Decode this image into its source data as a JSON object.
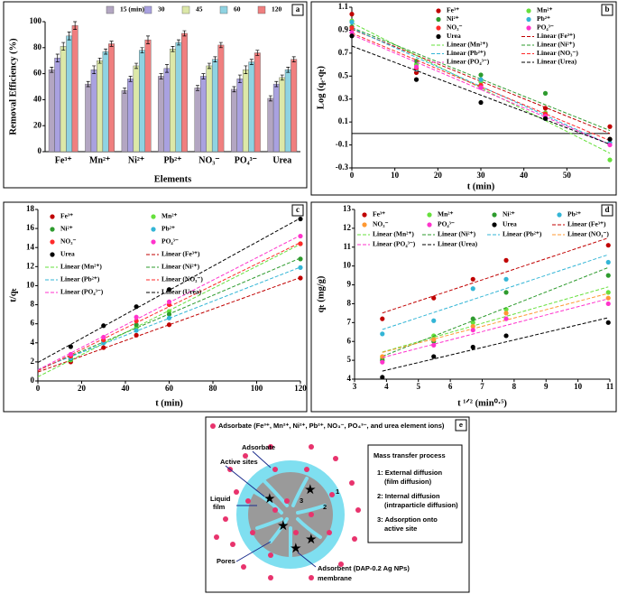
{
  "chart_data": [
    {
      "type": "bar",
      "panel": "a",
      "x_label": "Elements",
      "y_label": "Removal Efficiency  (%)",
      "categories": [
        "Fe³⁺",
        "Mn²⁺",
        "Ni²⁺",
        "Pb²⁺",
        "NO₃⁻",
        "PO₄³⁻",
        "Urea"
      ],
      "series": [
        {
          "name": "15 (min)",
          "color": "#b3a6c2",
          "values": [
            63,
            52,
            47,
            58,
            49,
            48,
            41
          ],
          "errors": [
            2,
            2,
            2,
            2,
            2,
            2,
            2
          ]
        },
        {
          "name": "30",
          "color": "#a9a1e0",
          "values": [
            72,
            63,
            56,
            64,
            58,
            56,
            52
          ],
          "errors": [
            3,
            3,
            2,
            3,
            2,
            3,
            2
          ]
        },
        {
          "name": "45",
          "color": "#dce8a8",
          "values": [
            81,
            70,
            66,
            79,
            66,
            63,
            57
          ],
          "errors": [
            3,
            2,
            2,
            2,
            2,
            3,
            2
          ]
        },
        {
          "name": "60",
          "color": "#8fd3e2",
          "values": [
            89,
            77,
            78,
            84,
            71,
            69,
            63
          ],
          "errors": [
            3,
            2,
            2,
            2,
            2,
            2,
            2
          ]
        },
        {
          "name": "120",
          "color": "#f07f7f",
          "values": [
            97,
            83,
            86,
            91,
            82,
            76,
            71
          ],
          "errors": [
            3,
            2,
            3,
            2,
            2,
            2,
            2
          ]
        }
      ],
      "ylim": [
        0,
        100
      ],
      "yticks": [
        0,
        20,
        40,
        60,
        80,
        100
      ],
      "grid": false,
      "legend": "upper center"
    },
    {
      "type": "scatter",
      "panel": "b",
      "x_label": "t (min)",
      "y_label": "Log (qₑ-qₜ)",
      "x": [
        0,
        15,
        30,
        45,
        60
      ],
      "series": [
        {
          "name": "Fe³⁺",
          "color": "#c00000",
          "values": [
            1.04,
            0.53,
            0.42,
            0.22,
            0.06
          ],
          "trendline": "Linear (Fe³⁺)"
        },
        {
          "name": "Mn²⁺",
          "color": "#66e03c",
          "values": [
            0.98,
            0.6,
            0.45,
            0.18,
            -0.23
          ],
          "trendline": "Linear (Mn²⁺)"
        },
        {
          "name": "Ni²⁺",
          "color": "#2e9b2e",
          "values": [
            0.93,
            0.63,
            0.51,
            0.35,
            -0.05
          ],
          "trendline": "Linear (Ni²⁺)"
        },
        {
          "name": "Pb²⁺",
          "color": "#33b5d6",
          "values": [
            0.97,
            0.56,
            0.47,
            0.13,
            -0.08
          ],
          "trendline": "Linear (Pb²⁺)"
        },
        {
          "name": "NO₃⁻",
          "color": "#ff2a2a",
          "values": [
            0.92,
            0.57,
            0.42,
            0.17,
            -0.05
          ],
          "trendline": "Linear (NO₃⁻)"
        },
        {
          "name": "PO₄³⁻",
          "color": "#ff33cc",
          "values": [
            0.88,
            0.58,
            0.4,
            0.15,
            -0.1
          ],
          "trendline": "Linear (PO₄³⁻)"
        },
        {
          "name": "Urea",
          "color": "#000000",
          "values": [
            0.85,
            0.47,
            0.27,
            0.13,
            -0.05
          ],
          "trendline": "Linear (Urea)"
        }
      ],
      "xlim": [
        0,
        60
      ],
      "xticks": [
        0,
        10,
        20,
        30,
        40,
        50
      ],
      "ylim": [
        -0.3,
        1.1
      ],
      "yticks": [
        -0.3,
        -0.1,
        0.1,
        0.3,
        0.5,
        0.7,
        0.9,
        1.1
      ],
      "grid": false,
      "legend": "upper right"
    },
    {
      "type": "scatter",
      "panel": "c",
      "x_label": "t (min)",
      "y_label": "t/qₜ",
      "x": [
        15,
        30,
        45,
        60,
        120
      ],
      "series": [
        {
          "name": "Fe³⁺",
          "color": "#c00000",
          "values": [
            2.0,
            3.5,
            4.8,
            5.9,
            10.8
          ],
          "trendline": "Linear (Fe³⁺)"
        },
        {
          "name": "Mn²⁺",
          "color": "#66e03c",
          "values": [
            2.2,
            4.0,
            5.6,
            7.3,
            14.4
          ],
          "trendline": "Linear (Mn²⁺)"
        },
        {
          "name": "Ni²⁺",
          "color": "#2e9b2e",
          "values": [
            2.3,
            4.2,
            5.9,
            7.0,
            12.8
          ],
          "trendline": "Linear (Ni²⁺)"
        },
        {
          "name": "Pb²⁺",
          "color": "#33b5d6",
          "values": [
            2.4,
            4.0,
            5.3,
            6.6,
            11.9
          ],
          "trendline": "Linear (Pb²⁺)"
        },
        {
          "name": "NO₃⁻",
          "color": "#ff2a2a",
          "values": [
            2.6,
            4.3,
            6.3,
            8.0,
            14.4
          ],
          "trendline": "Linear (NO₃⁻)"
        },
        {
          "name": "PO₄³⁻",
          "color": "#ff33cc",
          "values": [
            2.8,
            4.6,
            6.7,
            8.3,
            15.2
          ],
          "trendline": "Linear (PO₄³⁻)"
        },
        {
          "name": "Urea",
          "color": "#000000",
          "values": [
            3.6,
            5.8,
            7.8,
            9.6,
            17.0
          ],
          "trendline": "Linear (Urea)"
        }
      ],
      "xlim": [
        0,
        120
      ],
      "xticks": [
        0,
        20,
        40,
        60,
        80,
        100,
        120
      ],
      "ylim": [
        0,
        18
      ],
      "yticks": [
        0,
        2,
        4,
        6,
        8,
        10,
        12,
        14,
        16,
        18
      ],
      "grid": false,
      "legend": "upper left"
    },
    {
      "type": "scatter",
      "panel": "d",
      "x_label": "t ¹ᐟ² (min⁰·⁵)",
      "y_label": "qₜ (mg/g)",
      "x": [
        3.87,
        5.48,
        6.71,
        7.75,
        10.95
      ],
      "series": [
        {
          "name": "Fe³⁺",
          "color": "#c00000",
          "values": [
            7.2,
            8.3,
            9.3,
            10.3,
            11.1
          ],
          "trendline": "Linear (Fe³⁺)"
        },
        {
          "name": "Mn²⁺",
          "color": "#66e03c",
          "values": [
            5.1,
            6.3,
            7.0,
            7.7,
            8.6
          ],
          "trendline": "Linear (Mn²⁺)"
        },
        {
          "name": "Ni²⁺",
          "color": "#2e9b2e",
          "values": [
            5.0,
            6.0,
            7.2,
            8.6,
            9.5
          ],
          "trendline": "Linear (Ni²⁺)"
        },
        {
          "name": "Pb²⁺",
          "color": "#33b5d6",
          "values": [
            6.4,
            7.1,
            8.8,
            9.3,
            10.2
          ],
          "trendline": "Linear (Pb²⁺)"
        },
        {
          "name": "NO₃⁻",
          "color": "#ff9933",
          "values": [
            5.2,
            6.1,
            6.8,
            7.5,
            8.3
          ],
          "trendline": "Linear (NO₃⁻)"
        },
        {
          "name": "PO₄³⁻",
          "color": "#ff33cc",
          "values": [
            4.9,
            5.8,
            6.6,
            7.2,
            8.0
          ],
          "trendline": "Linear (PO₄³⁻)"
        },
        {
          "name": "Urea",
          "color": "#000000",
          "values": [
            4.1,
            5.2,
            5.7,
            6.3,
            7.0
          ],
          "trendline": "Linear (Urea)"
        }
      ],
      "xlim": [
        3,
        11
      ],
      "xticks": [
        3,
        4,
        5,
        6,
        7,
        8,
        9,
        10,
        11
      ],
      "ylim": [
        4,
        13
      ],
      "yticks": [
        4,
        5,
        6,
        7,
        8,
        9,
        10,
        11,
        12,
        13
      ],
      "grid": false,
      "legend": "upper center"
    }
  ],
  "diagram": {
    "panel": "e",
    "title": "Adsorbate (Fe³⁺, Mn²⁺, Ni²⁺, Pb²⁺, NO₃⁻, PO₄³⁻, and urea element ions)",
    "labels": {
      "adsorbate": "Adsorbate",
      "active_sites": "Active sites",
      "liquid_film": "Liquid",
      "liquid_film_2": "film",
      "pores": "Pores",
      "adsorbent": "Adsorbent (DAP-0.2 Ag NPs)",
      "adsorbent_2": "membrane"
    },
    "steps_title": "Mass transfer process",
    "steps": [
      "1: External diffusion",
      "(film diffusion)",
      "2: Internal diffusion",
      "(intraparticle diffusion)",
      "3: Adsorption onto",
      "active site"
    ],
    "markers": [
      "1",
      "2",
      "3"
    ]
  }
}
